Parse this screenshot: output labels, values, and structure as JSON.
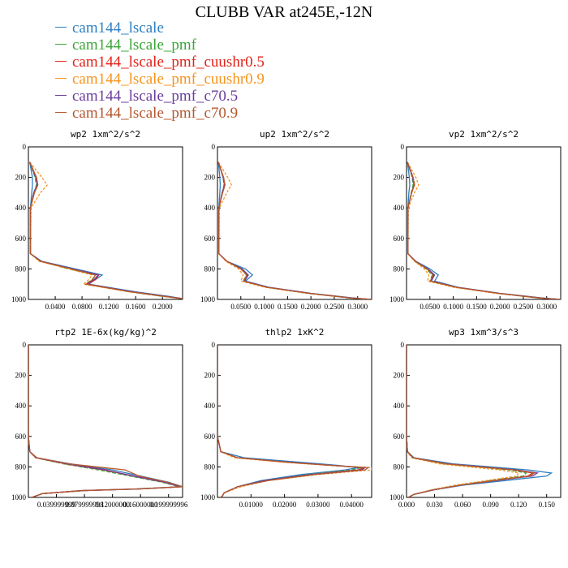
{
  "title": "CLUBB VAR at245E,-12N",
  "series": [
    {
      "name": "cam144_lscale",
      "color": "#2f7fc1"
    },
    {
      "name": "cam144_lscale_pmf",
      "color": "#3da53a"
    },
    {
      "name": "cam144_lscale_pmf_cuushr0.5",
      "color": "#e2231a"
    },
    {
      "name": "cam144_lscale_pmf_cuushr0.9",
      "color": "#f7941d"
    },
    {
      "name": "cam144_lscale_pmf_c70.5",
      "color": "#6a3d9a"
    },
    {
      "name": "cam144_lscale_pmf_c70.9",
      "color": "#b5572e"
    }
  ],
  "chart_data": [
    {
      "type": "line",
      "title": "wp2  1xm^2/s^2",
      "xlim": [
        0,
        0.23
      ],
      "ylim": [
        1000,
        0
      ],
      "xticks": [
        0.04,
        0.08,
        0.12,
        0.16,
        0.2
      ],
      "xtick_labels": [
        "0.0400",
        "0.0800",
        "0.1200",
        "0.1600",
        "0.2000"
      ],
      "yticks": [
        0,
        200,
        400,
        600,
        800,
        1000
      ],
      "ytick_labels": [
        "0",
        "200",
        "400",
        "600",
        "800",
        "1000"
      ],
      "y": [
        100,
        200,
        250,
        300,
        400,
        700,
        750,
        800,
        840,
        870,
        900,
        950,
        980,
        995
      ],
      "series": [
        {
          "x": [
            0.002,
            0.006,
            0.006,
            0.005,
            0.003,
            0.003,
            0.02,
            0.07,
            0.11,
            0.1,
            0.09,
            0.16,
            0.21,
            0.23
          ]
        },
        {
          "x": [
            0.002,
            0.01,
            0.012,
            0.008,
            0.003,
            0.003,
            0.018,
            0.06,
            0.1,
            0.095,
            0.085,
            0.15,
            0.2,
            0.23
          ]
        },
        {
          "x": [
            0.002,
            0.012,
            0.014,
            0.009,
            0.003,
            0.003,
            0.018,
            0.065,
            0.105,
            0.1,
            0.088,
            0.155,
            0.205,
            0.23
          ]
        },
        {
          "x": [
            0.002,
            0.02,
            0.028,
            0.018,
            0.004,
            0.003,
            0.016,
            0.06,
            0.095,
            0.09,
            0.082,
            0.15,
            0.2,
            0.23
          ]
        },
        {
          "x": [
            0.002,
            0.011,
            0.013,
            0.008,
            0.003,
            0.003,
            0.019,
            0.066,
            0.104,
            0.098,
            0.087,
            0.155,
            0.205,
            0.23
          ]
        },
        {
          "x": [
            0.002,
            0.012,
            0.014,
            0.009,
            0.003,
            0.003,
            0.018,
            0.064,
            0.1,
            0.096,
            0.086,
            0.153,
            0.203,
            0.23
          ]
        }
      ]
    },
    {
      "type": "line",
      "title": "up2  1xm^2/s^2",
      "xlim": [
        0,
        0.33
      ],
      "ylim": [
        1000,
        0
      ],
      "xticks": [
        0.05,
        0.1,
        0.15,
        0.2,
        0.25,
        0.3
      ],
      "xtick_labels": [
        "0.0500",
        "0.1000",
        "0.1500",
        "0.2000",
        "0.2500",
        "0.3000"
      ],
      "yticks": [
        0,
        200,
        400,
        600,
        800,
        1000
      ],
      "ytick_labels": [
        "0",
        "200",
        "400",
        "600",
        "800",
        "1000"
      ],
      "y": [
        100,
        200,
        250,
        300,
        400,
        700,
        750,
        800,
        840,
        880,
        920,
        960,
        990,
        1000
      ],
      "series": [
        {
          "x": [
            0.002,
            0.005,
            0.006,
            0.005,
            0.003,
            0.003,
            0.02,
            0.06,
            0.075,
            0.06,
            0.11,
            0.2,
            0.29,
            0.33
          ]
        },
        {
          "x": [
            0.002,
            0.012,
            0.014,
            0.01,
            0.003,
            0.003,
            0.02,
            0.05,
            0.062,
            0.055,
            0.105,
            0.195,
            0.28,
            0.33
          ]
        },
        {
          "x": [
            0.002,
            0.013,
            0.016,
            0.011,
            0.003,
            0.003,
            0.02,
            0.052,
            0.065,
            0.057,
            0.107,
            0.198,
            0.285,
            0.33
          ]
        },
        {
          "x": [
            0.002,
            0.022,
            0.03,
            0.02,
            0.004,
            0.003,
            0.018,
            0.045,
            0.055,
            0.05,
            0.1,
            0.19,
            0.28,
            0.33
          ]
        },
        {
          "x": [
            0.002,
            0.012,
            0.015,
            0.01,
            0.003,
            0.003,
            0.02,
            0.053,
            0.066,
            0.058,
            0.108,
            0.198,
            0.285,
            0.33
          ]
        },
        {
          "x": [
            0.002,
            0.013,
            0.016,
            0.011,
            0.003,
            0.003,
            0.02,
            0.05,
            0.063,
            0.056,
            0.106,
            0.196,
            0.283,
            0.33
          ]
        }
      ]
    },
    {
      "type": "line",
      "title": "vp2  1xm^2/s^2",
      "xlim": [
        0,
        0.33
      ],
      "ylim": [
        1000,
        0
      ],
      "xticks": [
        0.05,
        0.1,
        0.15,
        0.2,
        0.25,
        0.3
      ],
      "xtick_labels": [
        "0.0500",
        "0.1000",
        "0.1500",
        "0.2000",
        "0.2500",
        "0.3000"
      ],
      "yticks": [
        0,
        200,
        400,
        600,
        800,
        1000
      ],
      "ytick_labels": [
        "0",
        "200",
        "400",
        "600",
        "800",
        "1000"
      ],
      "y": [
        100,
        200,
        250,
        300,
        400,
        700,
        750,
        800,
        840,
        880,
        920,
        960,
        990,
        1000
      ],
      "series": [
        {
          "x": [
            0.002,
            0.006,
            0.007,
            0.005,
            0.003,
            0.003,
            0.02,
            0.05,
            0.068,
            0.06,
            0.11,
            0.2,
            0.29,
            0.33
          ]
        },
        {
          "x": [
            0.002,
            0.012,
            0.014,
            0.01,
            0.003,
            0.003,
            0.018,
            0.042,
            0.055,
            0.05,
            0.105,
            0.195,
            0.28,
            0.33
          ]
        },
        {
          "x": [
            0.002,
            0.014,
            0.017,
            0.011,
            0.003,
            0.003,
            0.019,
            0.045,
            0.058,
            0.052,
            0.107,
            0.198,
            0.285,
            0.33
          ]
        },
        {
          "x": [
            0.002,
            0.02,
            0.026,
            0.017,
            0.004,
            0.003,
            0.017,
            0.038,
            0.048,
            0.045,
            0.1,
            0.19,
            0.28,
            0.33
          ]
        },
        {
          "x": [
            0.002,
            0.013,
            0.016,
            0.011,
            0.003,
            0.003,
            0.019,
            0.046,
            0.06,
            0.053,
            0.108,
            0.198,
            0.285,
            0.33
          ]
        },
        {
          "x": [
            0.002,
            0.014,
            0.017,
            0.011,
            0.003,
            0.003,
            0.019,
            0.044,
            0.057,
            0.051,
            0.106,
            0.196,
            0.283,
            0.33
          ]
        }
      ]
    },
    {
      "type": "line",
      "title": "rtp2  1E-6x(kg/kg)^2",
      "xlim": [
        0,
        0.22
      ],
      "ylim": [
        1000,
        0
      ],
      "xticks": [
        0.04,
        0.08,
        0.12,
        0.16,
        0.2
      ],
      "xtick_labels": [
        "0.039999999",
        "0.079999998",
        "0.12000000",
        "0.16000000",
        "0.199999996"
      ],
      "yticks": [
        0,
        200,
        400,
        600,
        800,
        1000
      ],
      "ytick_labels": [
        "0",
        "200",
        "400",
        "600",
        "800",
        "1000"
      ],
      "y": [
        0,
        600,
        700,
        740,
        780,
        820,
        860,
        900,
        930,
        945,
        955,
        975,
        1000
      ],
      "series": [
        {
          "x": [
            0.0,
            0.0,
            0.002,
            0.012,
            0.06,
            0.12,
            0.16,
            0.2,
            0.22,
            0.16,
            0.08,
            0.02,
            0.005
          ]
        },
        {
          "x": [
            0.0,
            0.0,
            0.002,
            0.01,
            0.05,
            0.1,
            0.145,
            0.19,
            0.215,
            0.15,
            0.075,
            0.02,
            0.005
          ]
        },
        {
          "x": [
            0.0,
            0.0,
            0.002,
            0.011,
            0.055,
            0.11,
            0.15,
            0.195,
            0.218,
            0.155,
            0.078,
            0.02,
            0.005
          ]
        },
        {
          "x": [
            0.0,
            0.0,
            0.002,
            0.01,
            0.05,
            0.105,
            0.148,
            0.192,
            0.216,
            0.152,
            0.076,
            0.02,
            0.005
          ]
        },
        {
          "x": [
            0.0,
            0.0,
            0.002,
            0.011,
            0.054,
            0.108,
            0.15,
            0.194,
            0.217,
            0.154,
            0.077,
            0.02,
            0.005
          ]
        },
        {
          "x": [
            0.0,
            0.0,
            0.002,
            0.012,
            0.058,
            0.138,
            0.158,
            0.198,
            0.22,
            0.158,
            0.08,
            0.02,
            0.005
          ]
        }
      ]
    },
    {
      "type": "line",
      "title": "thlp2  1xK^2",
      "xlim": [
        0,
        0.046
      ],
      "ylim": [
        1000,
        0
      ],
      "xticks": [
        0.01,
        0.02,
        0.03,
        0.04
      ],
      "xtick_labels": [
        "0.01000",
        "0.02000",
        "0.03000",
        "0.04000"
      ],
      "yticks": [
        0,
        200,
        400,
        600,
        800,
        1000
      ],
      "ytick_labels": [
        "0",
        "200",
        "400",
        "600",
        "800",
        "1000"
      ],
      "y": [
        0,
        600,
        700,
        740,
        770,
        790,
        805,
        820,
        850,
        890,
        930,
        970,
        990,
        1000
      ],
      "series": [
        {
          "x": [
            0.0,
            0.0,
            0.001,
            0.008,
            0.025,
            0.036,
            0.042,
            0.038,
            0.025,
            0.013,
            0.006,
            0.002,
            0.0015,
            0.001
          ]
        },
        {
          "x": [
            0.0,
            0.0,
            0.001,
            0.006,
            0.022,
            0.034,
            0.043,
            0.04,
            0.027,
            0.014,
            0.006,
            0.002,
            0.0015,
            0.001
          ]
        },
        {
          "x": [
            0.0,
            0.0,
            0.001,
            0.006,
            0.021,
            0.034,
            0.044,
            0.042,
            0.028,
            0.014,
            0.006,
            0.002,
            0.0015,
            0.001
          ]
        },
        {
          "x": [
            0.0,
            0.0,
            0.001,
            0.005,
            0.02,
            0.033,
            0.046,
            0.046,
            0.03,
            0.015,
            0.007,
            0.002,
            0.0015,
            0.001
          ]
        },
        {
          "x": [
            0.0,
            0.0,
            0.001,
            0.006,
            0.022,
            0.034,
            0.044,
            0.043,
            0.028,
            0.014,
            0.006,
            0.002,
            0.0015,
            0.001
          ]
        },
        {
          "x": [
            0.0,
            0.0,
            0.001,
            0.006,
            0.021,
            0.034,
            0.045,
            0.044,
            0.029,
            0.015,
            0.006,
            0.002,
            0.0015,
            0.001
          ]
        }
      ]
    },
    {
      "type": "line",
      "title": "wp3  1xm^3/s^3",
      "xlim": [
        0,
        0.165
      ],
      "ylim": [
        1000,
        0
      ],
      "xticks": [
        0,
        0.03,
        0.06,
        0.09,
        0.12,
        0.15
      ],
      "xtick_labels": [
        "0.000",
        "0.030",
        "0.060",
        "0.090",
        "0.120",
        "0.150"
      ],
      "yticks": [
        0,
        200,
        400,
        600,
        800,
        1000
      ],
      "ytick_labels": [
        "0",
        "200",
        "400",
        "600",
        "800",
        "1000"
      ],
      "y": [
        0,
        600,
        700,
        740,
        780,
        820,
        840,
        860,
        880,
        920,
        950,
        980,
        1000
      ],
      "series": [
        {
          "x": [
            0.0,
            0.0,
            0.001,
            0.008,
            0.05,
            0.13,
            0.155,
            0.15,
            0.12,
            0.06,
            0.03,
            0.008,
            0.002
          ]
        },
        {
          "x": [
            0.0,
            0.0,
            0.001,
            0.006,
            0.04,
            0.11,
            0.128,
            0.125,
            0.1,
            0.055,
            0.028,
            0.008,
            0.002
          ]
        },
        {
          "x": [
            0.0,
            0.0,
            0.001,
            0.007,
            0.042,
            0.115,
            0.135,
            0.13,
            0.105,
            0.057,
            0.029,
            0.008,
            0.002
          ]
        },
        {
          "x": [
            0.0,
            0.0,
            0.001,
            0.005,
            0.035,
            0.1,
            0.12,
            0.118,
            0.096,
            0.052,
            0.027,
            0.008,
            0.002
          ]
        },
        {
          "x": [
            0.0,
            0.0,
            0.001,
            0.007,
            0.044,
            0.118,
            0.14,
            0.135,
            0.108,
            0.058,
            0.029,
            0.008,
            0.002
          ]
        },
        {
          "x": [
            0.0,
            0.0,
            0.001,
            0.007,
            0.043,
            0.116,
            0.137,
            0.132,
            0.106,
            0.057,
            0.029,
            0.008,
            0.002
          ]
        }
      ]
    }
  ]
}
